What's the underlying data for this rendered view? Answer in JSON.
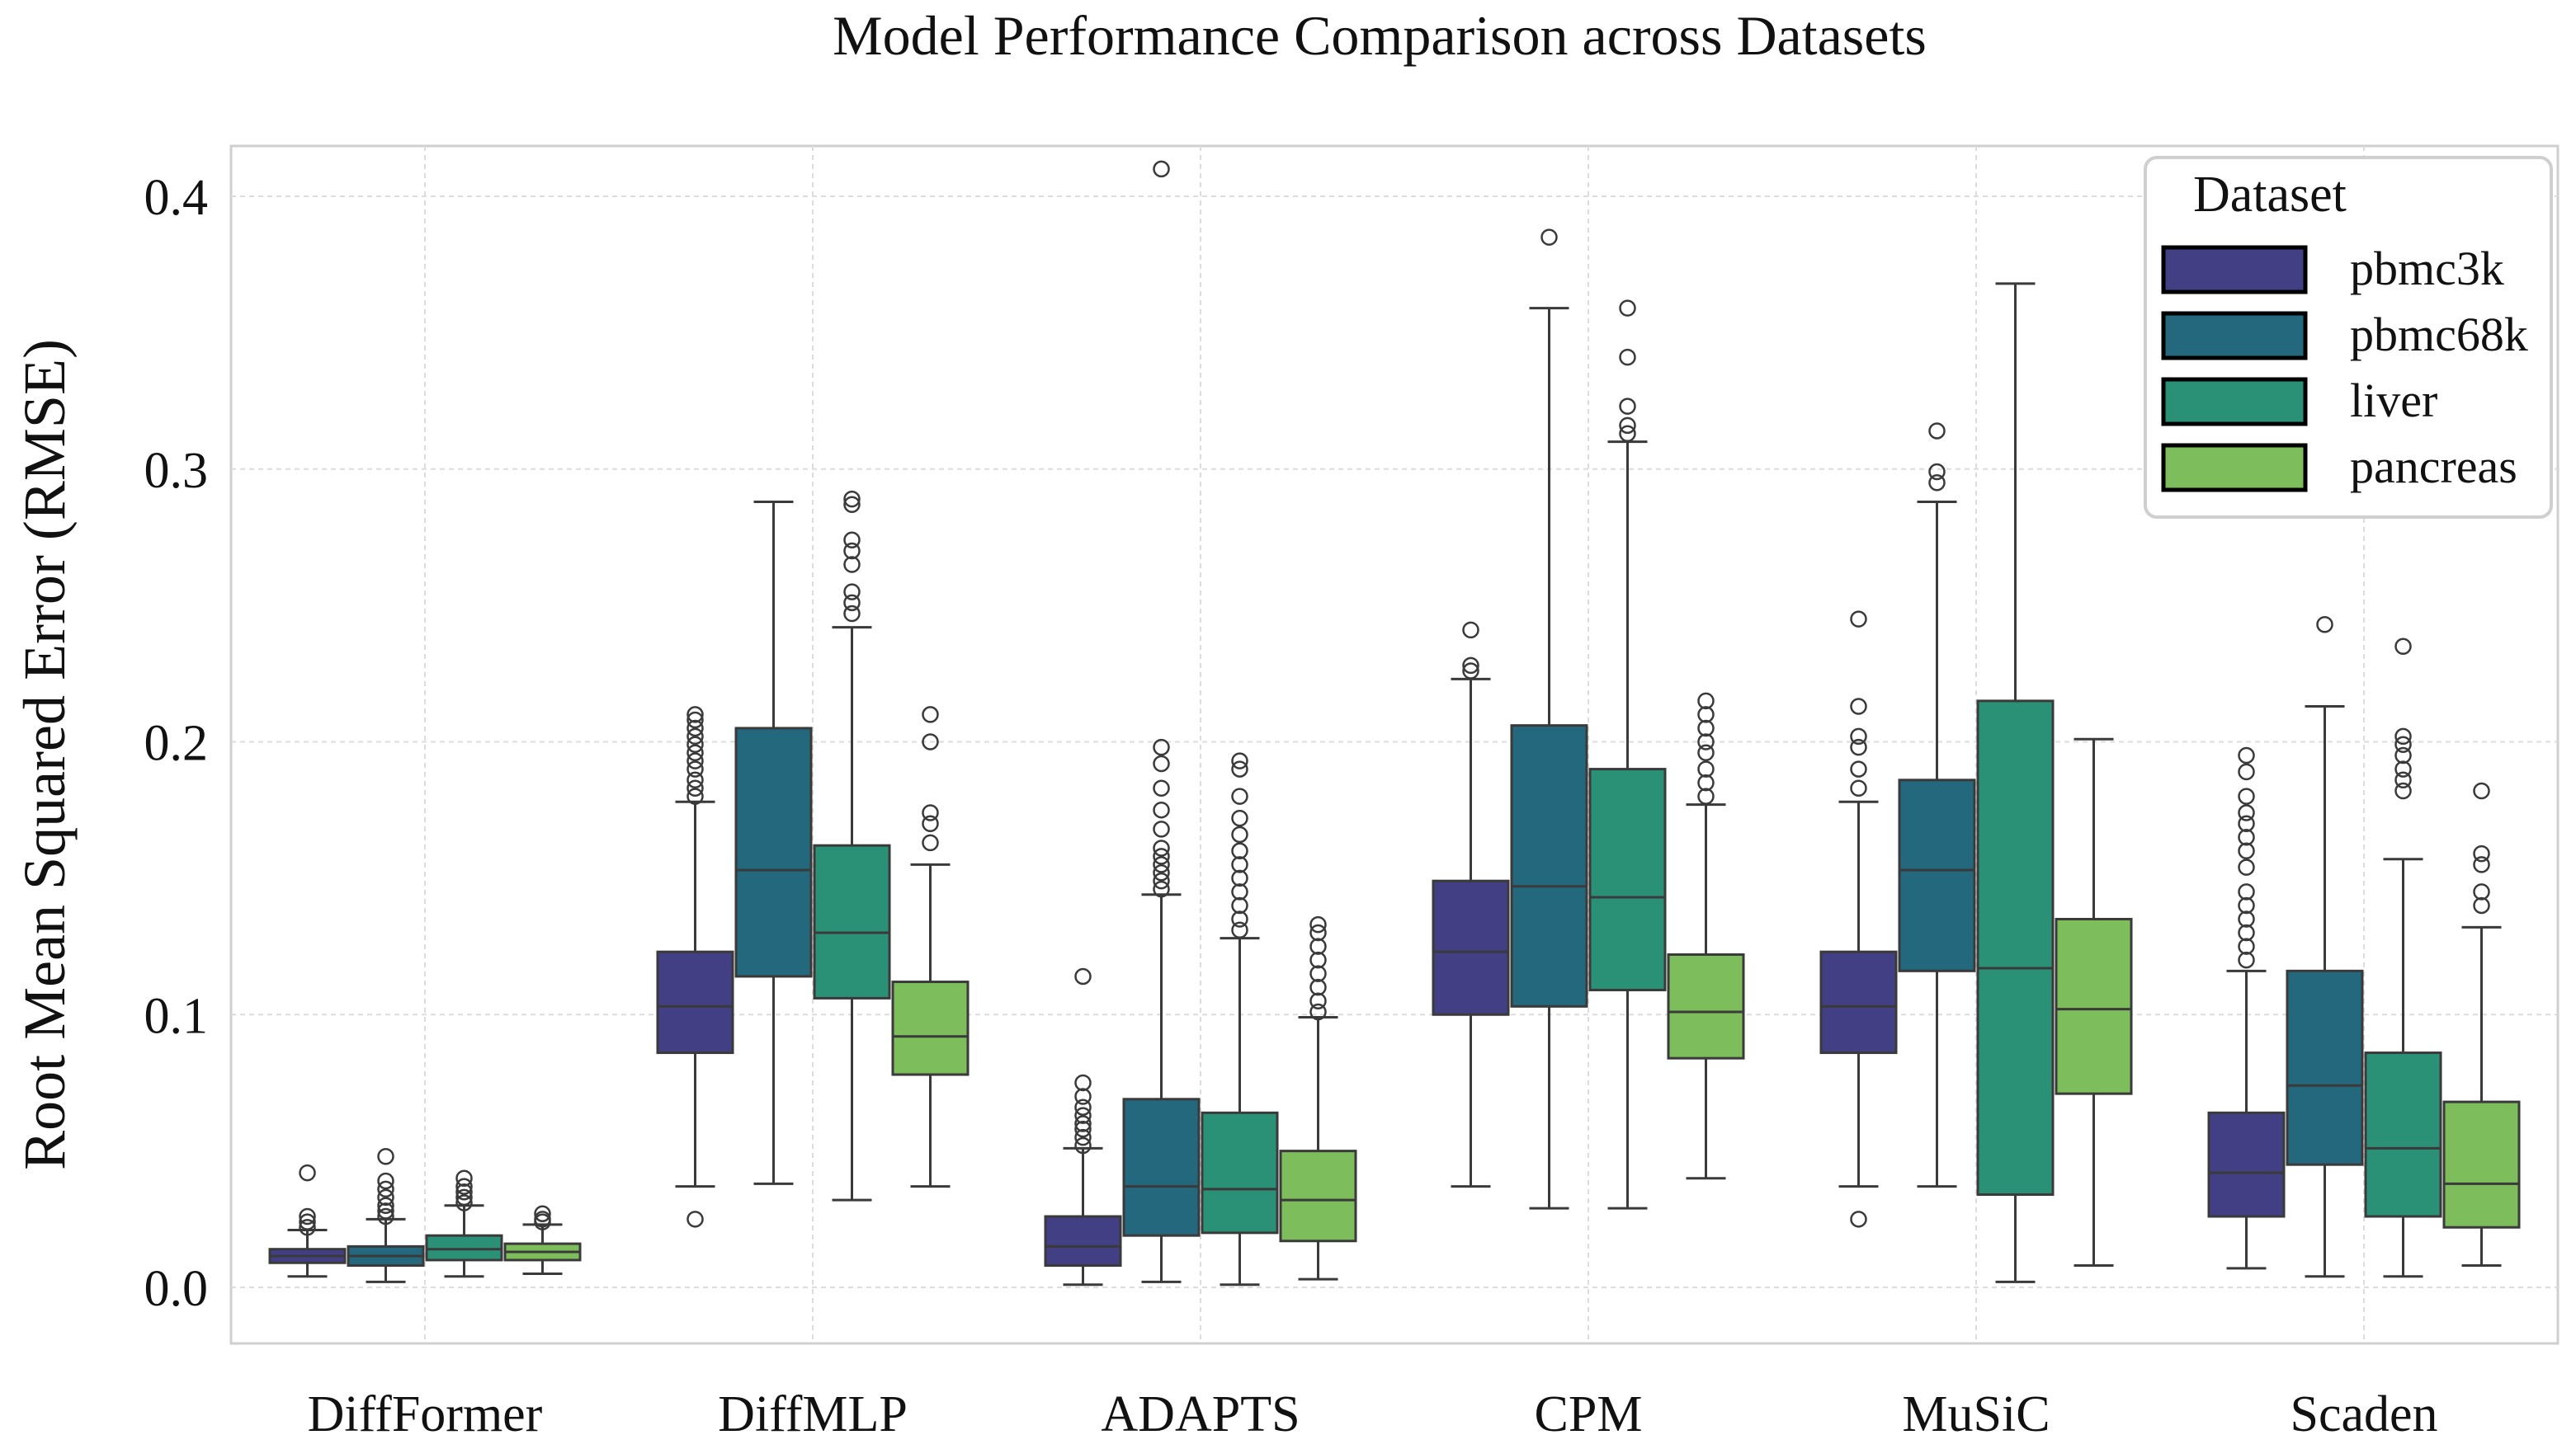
{
  "chart_data": {
    "type": "box",
    "title": "Model Performance Comparison across Datasets",
    "xlabel": "",
    "ylabel": "Root Mean Squared Error (RMSE)",
    "ylim": [
      -0.002,
      0.43
    ],
    "yticks": [
      0.0,
      0.1,
      0.2,
      0.3,
      0.4
    ],
    "ytick_labels": [
      "0.0",
      "0.1",
      "0.2",
      "0.3",
      "0.4"
    ],
    "grid": true,
    "categories": [
      "DiffFormer",
      "DiffMLP",
      "ADAPTS",
      "CPM",
      "MuSiC",
      "Scaden"
    ],
    "legend": {
      "title": "Dataset",
      "position": "top-right",
      "entries": [
        "pbmc3k",
        "pbmc68k",
        "liver",
        "pancreas"
      ]
    },
    "series": [
      {
        "name": "pbmc3k",
        "color": "#423f85",
        "boxes": [
          {
            "whislo": 0.004,
            "q1": 0.009,
            "med": 0.0115,
            "q3": 0.014,
            "whishi": 0.021,
            "fliers": [
              0.022,
              0.024,
              0.026,
              0.042
            ]
          },
          {
            "whislo": 0.037,
            "q1": 0.086,
            "med": 0.103,
            "q3": 0.123,
            "whishi": 0.178,
            "fliers": [
              0.025,
              0.18,
              0.183,
              0.186,
              0.19,
              0.193,
              0.196,
              0.199,
              0.202,
              0.205,
              0.208,
              0.21
            ]
          },
          {
            "whislo": 0.001,
            "q1": 0.008,
            "med": 0.015,
            "q3": 0.026,
            "whishi": 0.051,
            "fliers": [
              0.052,
              0.055,
              0.058,
              0.06,
              0.063,
              0.066,
              0.07,
              0.075,
              0.114
            ]
          },
          {
            "whislo": 0.037,
            "q1": 0.1,
            "med": 0.123,
            "q3": 0.149,
            "whishi": 0.223,
            "fliers": [
              0.226,
              0.228,
              0.241
            ]
          },
          {
            "whislo": 0.037,
            "q1": 0.086,
            "med": 0.103,
            "q3": 0.123,
            "whishi": 0.178,
            "fliers": [
              0.025,
              0.183,
              0.19,
              0.198,
              0.202,
              0.213,
              0.245
            ]
          },
          {
            "whislo": 0.007,
            "q1": 0.026,
            "med": 0.042,
            "q3": 0.064,
            "whishi": 0.116,
            "fliers": [
              0.12,
              0.125,
              0.13,
              0.135,
              0.14,
              0.145,
              0.154,
              0.16,
              0.165,
              0.17,
              0.174,
              0.18,
              0.189,
              0.195
            ]
          }
        ]
      },
      {
        "name": "pbmc68k",
        "color": "#23687c",
        "boxes": [
          {
            "whislo": 0.002,
            "q1": 0.008,
            "med": 0.0115,
            "q3": 0.015,
            "whishi": 0.025,
            "fliers": [
              0.026,
              0.028,
              0.03,
              0.033,
              0.036,
              0.039,
              0.048
            ]
          },
          {
            "whislo": 0.038,
            "q1": 0.114,
            "med": 0.153,
            "q3": 0.205,
            "whishi": 0.288,
            "fliers": []
          },
          {
            "whislo": 0.002,
            "q1": 0.019,
            "med": 0.037,
            "q3": 0.069,
            "whishi": 0.144,
            "fliers": [
              0.146,
              0.149,
              0.152,
              0.155,
              0.158,
              0.161,
              0.168,
              0.175,
              0.183,
              0.192,
              0.198,
              0.41
            ]
          },
          {
            "whislo": 0.029,
            "q1": 0.103,
            "med": 0.147,
            "q3": 0.206,
            "whishi": 0.359,
            "fliers": [
              0.385
            ]
          },
          {
            "whislo": 0.037,
            "q1": 0.116,
            "med": 0.153,
            "q3": 0.186,
            "whishi": 0.288,
            "fliers": [
              0.295,
              0.299,
              0.314
            ]
          },
          {
            "whislo": 0.004,
            "q1": 0.045,
            "med": 0.074,
            "q3": 0.116,
            "whishi": 0.213,
            "fliers": [
              0.243
            ]
          }
        ]
      },
      {
        "name": "liver",
        "color": "#2a9176",
        "boxes": [
          {
            "whislo": 0.004,
            "q1": 0.01,
            "med": 0.014,
            "q3": 0.019,
            "whishi": 0.03,
            "fliers": [
              0.031,
              0.033,
              0.035,
              0.037,
              0.04
            ]
          },
          {
            "whislo": 0.032,
            "q1": 0.106,
            "med": 0.13,
            "q3": 0.162,
            "whishi": 0.242,
            "fliers": [
              0.247,
              0.251,
              0.255,
              0.265,
              0.27,
              0.274,
              0.287,
              0.289
            ]
          },
          {
            "whislo": 0.001,
            "q1": 0.02,
            "med": 0.036,
            "q3": 0.064,
            "whishi": 0.128,
            "fliers": [
              0.131,
              0.135,
              0.14,
              0.145,
              0.15,
              0.155,
              0.16,
              0.166,
              0.172,
              0.18,
              0.19,
              0.193
            ]
          },
          {
            "whislo": 0.029,
            "q1": 0.109,
            "med": 0.143,
            "q3": 0.19,
            "whishi": 0.31,
            "fliers": [
              0.313,
              0.316,
              0.323,
              0.341,
              0.359
            ]
          },
          {
            "whislo": 0.002,
            "q1": 0.034,
            "med": 0.117,
            "q3": 0.215,
            "whishi": 0.368,
            "fliers": []
          },
          {
            "whislo": 0.004,
            "q1": 0.026,
            "med": 0.051,
            "q3": 0.086,
            "whishi": 0.157,
            "fliers": [
              0.182,
              0.186,
              0.19,
              0.195,
              0.199,
              0.202,
              0.235
            ]
          }
        ]
      },
      {
        "name": "pancreas",
        "color": "#7ebd5b",
        "boxes": [
          {
            "whislo": 0.005,
            "q1": 0.01,
            "med": 0.013,
            "q3": 0.016,
            "whishi": 0.023,
            "fliers": [
              0.024,
              0.025,
              0.027
            ]
          },
          {
            "whislo": 0.037,
            "q1": 0.078,
            "med": 0.092,
            "q3": 0.112,
            "whishi": 0.155,
            "fliers": [
              0.163,
              0.17,
              0.174,
              0.2,
              0.21
            ]
          },
          {
            "whislo": 0.003,
            "q1": 0.017,
            "med": 0.032,
            "q3": 0.05,
            "whishi": 0.099,
            "fliers": [
              0.101,
              0.105,
              0.11,
              0.115,
              0.12,
              0.125,
              0.13,
              0.133
            ]
          },
          {
            "whislo": 0.04,
            "q1": 0.084,
            "med": 0.101,
            "q3": 0.122,
            "whishi": 0.177,
            "fliers": [
              0.18,
              0.185,
              0.19,
              0.196,
              0.2,
              0.205,
              0.21,
              0.215
            ]
          },
          {
            "whislo": 0.008,
            "q1": 0.071,
            "med": 0.102,
            "q3": 0.135,
            "whishi": 0.201,
            "fliers": []
          },
          {
            "whislo": 0.008,
            "q1": 0.022,
            "med": 0.038,
            "q3": 0.068,
            "whishi": 0.132,
            "fliers": [
              0.14,
              0.145,
              0.155,
              0.159,
              0.182
            ]
          }
        ]
      }
    ]
  }
}
